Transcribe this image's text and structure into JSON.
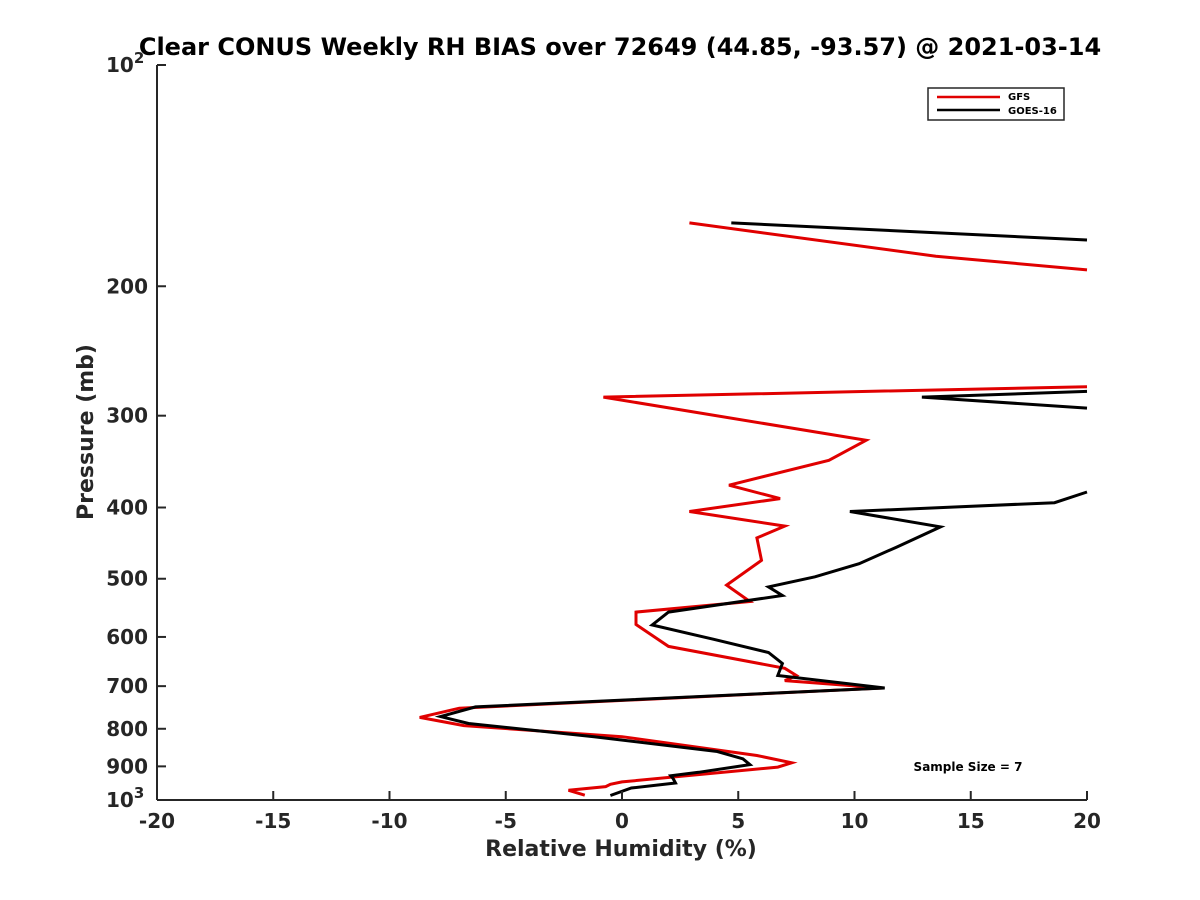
{
  "chart_data": {
    "type": "line",
    "title": "Clear CONUS Weekly RH BIAS over 72649 (44.85, -93.57) @ 2021-03-14",
    "xlabel": "Relative Humidity (%)",
    "ylabel": "Pressure (mb)",
    "xlim": [
      -20,
      20
    ],
    "ylim": [
      1000,
      100
    ],
    "y_scale": "log-reversed",
    "grid": false,
    "legend_position": "top-right",
    "x_ticks": [
      "-20",
      "-15",
      "-10",
      "-5",
      "0",
      "5",
      "10",
      "15",
      "20"
    ],
    "y_ticks": [
      {
        "value": 100,
        "label": "10",
        "sup": "2"
      },
      {
        "value": 200,
        "label": "200",
        "sup": ""
      },
      {
        "value": 300,
        "label": "300",
        "sup": ""
      },
      {
        "value": 400,
        "label": "400",
        "sup": ""
      },
      {
        "value": 500,
        "label": "500",
        "sup": ""
      },
      {
        "value": 600,
        "label": "600",
        "sup": ""
      },
      {
        "value": 700,
        "label": "700",
        "sup": ""
      },
      {
        "value": 800,
        "label": "800",
        "sup": ""
      },
      {
        "value": 900,
        "label": "900",
        "sup": ""
      },
      {
        "value": 1000,
        "label": "10",
        "sup": "3"
      }
    ],
    "annotation": "Sample Size = 7",
    "series": [
      {
        "name": "GFS",
        "color": "#e00000",
        "points": [
          [
            2.9,
            164
          ],
          [
            13.5,
            182
          ],
          [
            20.0,
            190
          ],
          null,
          [
            20.0,
            274
          ],
          [
            -0.8,
            283
          ],
          [
            10.5,
            324
          ],
          [
            8.9,
            345
          ],
          [
            4.6,
            373
          ],
          [
            6.8,
            389
          ],
          [
            2.9,
            405
          ],
          [
            7.0,
            424
          ],
          [
            5.8,
            440
          ],
          [
            6.0,
            472
          ],
          [
            4.5,
            510
          ],
          [
            5.5,
            537
          ],
          [
            0.6,
            555
          ],
          [
            0.6,
            577
          ],
          [
            2.0,
            618
          ],
          [
            7.0,
            662
          ],
          [
            7.5,
            677
          ],
          [
            7.0,
            688
          ],
          [
            11.2,
            704
          ],
          [
            -7.0,
            750
          ],
          [
            -8.7,
            772
          ],
          [
            -6.8,
            792
          ],
          [
            0.0,
            820
          ],
          [
            5.8,
            870
          ],
          [
            7.3,
            890
          ],
          [
            6.7,
            902
          ],
          [
            0.0,
            945
          ],
          [
            -0.5,
            952
          ],
          [
            -0.7,
            959
          ],
          [
            -2.3,
            970
          ],
          [
            -1.6,
            985
          ]
        ]
      },
      {
        "name": "GOES-16",
        "color": "#000000",
        "points": [
          [
            4.7,
            164
          ],
          [
            20.0,
            173
          ],
          null,
          [
            20.0,
            278
          ],
          [
            12.9,
            283
          ],
          [
            20.0,
            293
          ],
          null,
          [
            20.0,
            381
          ],
          [
            18.6,
            394
          ],
          [
            9.8,
            405
          ],
          [
            13.7,
            425
          ],
          [
            11.8,
            453
          ],
          [
            10.2,
            477
          ],
          [
            8.3,
            497
          ],
          [
            6.3,
            513
          ],
          [
            6.9,
            527
          ],
          [
            2.0,
            555
          ],
          [
            1.3,
            578
          ],
          [
            3.9,
            604
          ],
          [
            6.3,
            630
          ],
          [
            6.9,
            652
          ],
          [
            6.7,
            677
          ],
          [
            11.3,
            704
          ],
          [
            -6.3,
            747
          ],
          [
            -7.8,
            770
          ],
          [
            -6.6,
            787
          ],
          [
            -1.2,
            820
          ],
          [
            4.1,
            859
          ],
          [
            5.2,
            879
          ],
          [
            5.5,
            895
          ],
          [
            3.3,
            917
          ],
          [
            2.1,
            927
          ],
          [
            2.2,
            935
          ],
          [
            2.3,
            948
          ],
          [
            0.4,
            963
          ],
          [
            -0.5,
            986
          ]
        ]
      }
    ]
  }
}
